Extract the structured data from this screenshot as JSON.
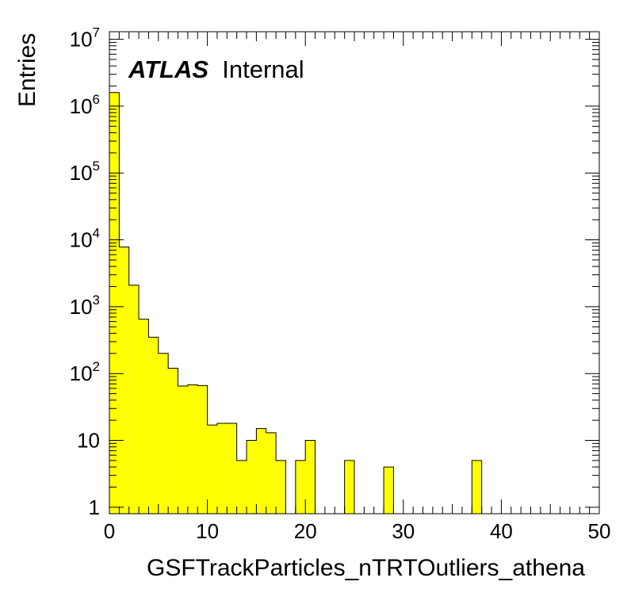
{
  "chart_data": {
    "type": "bar",
    "title": "",
    "xlabel": "GSFTrackParticles_nTRTOutliers_athena",
    "ylabel": "Entries",
    "xlim": [
      0,
      50
    ],
    "ylim": [
      0.8,
      13000000
    ],
    "y_scale": "log",
    "bin_width": 1,
    "fill_color": "#ffff00",
    "edge_color": "#000000",
    "x_ticks": [
      "0",
      "10",
      "20",
      "30",
      "40",
      "50"
    ],
    "y_ticks": [
      {
        "value": 1,
        "base": "1",
        "exp": ""
      },
      {
        "value": 10,
        "base": "10",
        "exp": ""
      },
      {
        "value": 100,
        "base": "10",
        "exp": "2"
      },
      {
        "value": 1000,
        "base": "10",
        "exp": "3"
      },
      {
        "value": 10000,
        "base": "10",
        "exp": "4"
      },
      {
        "value": 100000,
        "base": "10",
        "exp": "5"
      },
      {
        "value": 1000000,
        "base": "10",
        "exp": "6"
      },
      {
        "value": 10000000,
        "base": "10",
        "exp": "7"
      }
    ],
    "bins": [
      0,
      1,
      2,
      3,
      4,
      5,
      6,
      7,
      8,
      9,
      10,
      11,
      12,
      13,
      14,
      15,
      16,
      17,
      18,
      19,
      20,
      21,
      22,
      23,
      24,
      25,
      26,
      27,
      28,
      29,
      30,
      31,
      32,
      33,
      34,
      35,
      36,
      37,
      38,
      39,
      40,
      41,
      42,
      43,
      44,
      45,
      46,
      47,
      48,
      49
    ],
    "values": [
      1600000,
      7800,
      2100,
      650,
      350,
      200,
      120,
      65,
      68,
      66,
      17,
      18,
      18,
      5,
      10,
      15,
      13,
      5,
      0,
      5,
      10,
      0,
      0,
      0,
      5,
      0,
      0,
      0,
      4,
      0,
      0,
      0,
      0,
      0,
      0,
      0,
      0,
      5,
      0,
      0,
      0,
      0,
      0,
      0,
      0,
      0,
      0,
      0,
      0,
      0
    ]
  },
  "annotation": {
    "brand": "ATLAS",
    "status": "Internal"
  }
}
